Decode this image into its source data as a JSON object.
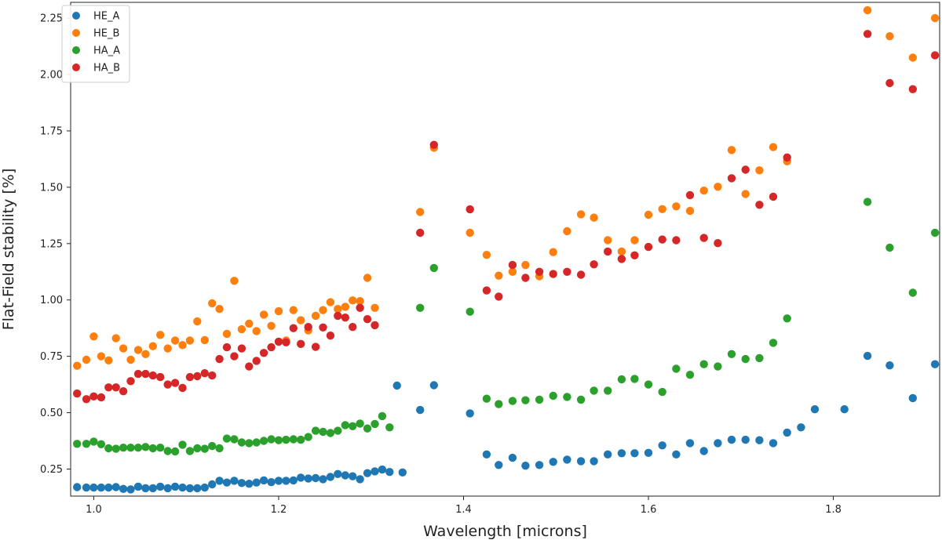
{
  "chart_data": {
    "type": "scatter",
    "xlabel": "Wavelength [microns]",
    "ylabel": "Flat-Field stability [%]",
    "xlim": [
      0.975,
      1.915
    ],
    "ylim": [
      0.13,
      2.32
    ],
    "x_ticks": [
      1.0,
      1.2,
      1.4,
      1.6,
      1.8
    ],
    "x_tick_labels": [
      "1.0",
      "1.2",
      "1.4",
      "1.6",
      "1.8"
    ],
    "y_ticks": [
      0.25,
      0.5,
      0.75,
      1.0,
      1.25,
      1.5,
      1.75,
      2.0,
      2.25
    ],
    "y_tick_labels": [
      "0.25",
      "0.50",
      "0.75",
      "1.00",
      "1.25",
      "1.50",
      "1.75",
      "2.00",
      "2.25"
    ],
    "grid": false,
    "legend_position": "top-left",
    "series": [
      {
        "name": "HE_A",
        "color": "#1f77b4",
        "points": [
          [
            0.982,
            0.17
          ],
          [
            0.992,
            0.168
          ],
          [
            1.0,
            0.168
          ],
          [
            1.008,
            0.168
          ],
          [
            1.016,
            0.168
          ],
          [
            1.024,
            0.17
          ],
          [
            1.032,
            0.162
          ],
          [
            1.04,
            0.16
          ],
          [
            1.048,
            0.172
          ],
          [
            1.056,
            0.165
          ],
          [
            1.064,
            0.165
          ],
          [
            1.072,
            0.172
          ],
          [
            1.08,
            0.165
          ],
          [
            1.088,
            0.172
          ],
          [
            1.096,
            0.168
          ],
          [
            1.104,
            0.165
          ],
          [
            1.112,
            0.165
          ],
          [
            1.12,
            0.168
          ],
          [
            1.128,
            0.182
          ],
          [
            1.136,
            0.198
          ],
          [
            1.144,
            0.19
          ],
          [
            1.152,
            0.198
          ],
          [
            1.16,
            0.188
          ],
          [
            1.168,
            0.185
          ],
          [
            1.176,
            0.19
          ],
          [
            1.184,
            0.2
          ],
          [
            1.192,
            0.192
          ],
          [
            1.2,
            0.198
          ],
          [
            1.208,
            0.198
          ],
          [
            1.216,
            0.2
          ],
          [
            1.224,
            0.212
          ],
          [
            1.232,
            0.208
          ],
          [
            1.24,
            0.21
          ],
          [
            1.248,
            0.205
          ],
          [
            1.256,
            0.215
          ],
          [
            1.264,
            0.228
          ],
          [
            1.272,
            0.222
          ],
          [
            1.28,
            0.218
          ],
          [
            1.288,
            0.205
          ],
          [
            1.296,
            0.232
          ],
          [
            1.304,
            0.24
          ],
          [
            1.312,
            0.248
          ],
          [
            1.32,
            0.237
          ],
          [
            1.328,
            0.62
          ],
          [
            1.334,
            0.235
          ],
          [
            1.353,
            0.512
          ],
          [
            1.368,
            0.622
          ],
          [
            1.407,
            0.497
          ],
          [
            1.425,
            0.315
          ],
          [
            1.438,
            0.268
          ],
          [
            1.453,
            0.3
          ],
          [
            1.467,
            0.265
          ],
          [
            1.482,
            0.268
          ],
          [
            1.497,
            0.282
          ],
          [
            1.512,
            0.292
          ],
          [
            1.527,
            0.285
          ],
          [
            1.541,
            0.285
          ],
          [
            1.556,
            0.315
          ],
          [
            1.571,
            0.32
          ],
          [
            1.585,
            0.32
          ],
          [
            1.6,
            0.322
          ],
          [
            1.615,
            0.355
          ],
          [
            1.63,
            0.315
          ],
          [
            1.645,
            0.365
          ],
          [
            1.66,
            0.33
          ],
          [
            1.675,
            0.365
          ],
          [
            1.69,
            0.38
          ],
          [
            1.705,
            0.38
          ],
          [
            1.72,
            0.378
          ],
          [
            1.735,
            0.365
          ],
          [
            1.75,
            0.412
          ],
          [
            1.765,
            0.435
          ],
          [
            1.78,
            0.515
          ],
          [
            1.812,
            0.515
          ],
          [
            1.837,
            0.752
          ],
          [
            1.861,
            0.71
          ],
          [
            1.886,
            0.565
          ],
          [
            1.91,
            0.715
          ]
        ]
      },
      {
        "name": "HE_B",
        "color": "#ff7f0e",
        "points": [
          [
            0.982,
            0.708
          ],
          [
            0.992,
            0.735
          ],
          [
            1.0,
            0.838
          ],
          [
            1.008,
            0.75
          ],
          [
            1.016,
            0.732
          ],
          [
            1.024,
            0.83
          ],
          [
            1.032,
            0.785
          ],
          [
            1.04,
            0.735
          ],
          [
            1.048,
            0.778
          ],
          [
            1.056,
            0.76
          ],
          [
            1.064,
            0.795
          ],
          [
            1.072,
            0.845
          ],
          [
            1.08,
            0.785
          ],
          [
            1.088,
            0.82
          ],
          [
            1.096,
            0.8
          ],
          [
            1.104,
            0.82
          ],
          [
            1.112,
            0.905
          ],
          [
            1.12,
            0.822
          ],
          [
            1.128,
            0.985
          ],
          [
            1.136,
            0.96
          ],
          [
            1.144,
            0.85
          ],
          [
            1.152,
            1.085
          ],
          [
            1.16,
            0.87
          ],
          [
            1.168,
            0.895
          ],
          [
            1.176,
            0.862
          ],
          [
            1.184,
            0.935
          ],
          [
            1.192,
            0.885
          ],
          [
            1.2,
            0.95
          ],
          [
            1.208,
            0.82
          ],
          [
            1.216,
            0.955
          ],
          [
            1.224,
            0.91
          ],
          [
            1.232,
            0.865
          ],
          [
            1.24,
            0.93
          ],
          [
            1.248,
            0.955
          ],
          [
            1.256,
            0.99
          ],
          [
            1.264,
            0.96
          ],
          [
            1.272,
            0.97
          ],
          [
            1.28,
            0.998
          ],
          [
            1.288,
            0.995
          ],
          [
            1.296,
            1.098
          ],
          [
            1.304,
            0.965
          ],
          [
            1.353,
            1.39
          ],
          [
            1.368,
            1.675
          ],
          [
            1.407,
            1.298
          ],
          [
            1.425,
            1.2
          ],
          [
            1.438,
            1.108
          ],
          [
            1.453,
            1.125
          ],
          [
            1.467,
            1.155
          ],
          [
            1.482,
            1.105
          ],
          [
            1.497,
            1.212
          ],
          [
            1.512,
            1.305
          ],
          [
            1.527,
            1.38
          ],
          [
            1.541,
            1.365
          ],
          [
            1.556,
            1.265
          ],
          [
            1.571,
            1.215
          ],
          [
            1.585,
            1.265
          ],
          [
            1.6,
            1.378
          ],
          [
            1.615,
            1.403
          ],
          [
            1.63,
            1.415
          ],
          [
            1.645,
            1.395
          ],
          [
            1.66,
            1.485
          ],
          [
            1.675,
            1.502
          ],
          [
            1.69,
            1.665
          ],
          [
            1.705,
            1.47
          ],
          [
            1.72,
            1.575
          ],
          [
            1.735,
            1.678
          ],
          [
            1.75,
            1.615
          ],
          [
            1.837,
            2.285
          ],
          [
            1.861,
            2.17
          ],
          [
            1.886,
            2.075
          ],
          [
            1.91,
            2.25
          ]
        ]
      },
      {
        "name": "HA_A",
        "color": "#2ca02c",
        "points": [
          [
            0.982,
            0.362
          ],
          [
            0.992,
            0.362
          ],
          [
            1.0,
            0.372
          ],
          [
            1.008,
            0.36
          ],
          [
            1.016,
            0.342
          ],
          [
            1.024,
            0.34
          ],
          [
            1.032,
            0.345
          ],
          [
            1.04,
            0.345
          ],
          [
            1.048,
            0.345
          ],
          [
            1.056,
            0.348
          ],
          [
            1.064,
            0.342
          ],
          [
            1.072,
            0.345
          ],
          [
            1.08,
            0.33
          ],
          [
            1.088,
            0.328
          ],
          [
            1.096,
            0.358
          ],
          [
            1.104,
            0.33
          ],
          [
            1.112,
            0.342
          ],
          [
            1.12,
            0.34
          ],
          [
            1.128,
            0.352
          ],
          [
            1.136,
            0.342
          ],
          [
            1.144,
            0.385
          ],
          [
            1.152,
            0.382
          ],
          [
            1.16,
            0.368
          ],
          [
            1.168,
            0.365
          ],
          [
            1.176,
            0.368
          ],
          [
            1.184,
            0.375
          ],
          [
            1.192,
            0.382
          ],
          [
            1.2,
            0.378
          ],
          [
            1.208,
            0.38
          ],
          [
            1.216,
            0.382
          ],
          [
            1.224,
            0.38
          ],
          [
            1.232,
            0.392
          ],
          [
            1.24,
            0.42
          ],
          [
            1.248,
            0.415
          ],
          [
            1.256,
            0.41
          ],
          [
            1.264,
            0.42
          ],
          [
            1.272,
            0.445
          ],
          [
            1.28,
            0.44
          ],
          [
            1.288,
            0.452
          ],
          [
            1.296,
            0.43
          ],
          [
            1.304,
            0.45
          ],
          [
            1.312,
            0.485
          ],
          [
            1.32,
            0.435
          ],
          [
            1.353,
            0.965
          ],
          [
            1.368,
            1.142
          ],
          [
            1.407,
            0.948
          ],
          [
            1.425,
            0.562
          ],
          [
            1.438,
            0.538
          ],
          [
            1.453,
            0.552
          ],
          [
            1.467,
            0.555
          ],
          [
            1.482,
            0.558
          ],
          [
            1.497,
            0.575
          ],
          [
            1.512,
            0.57
          ],
          [
            1.527,
            0.558
          ],
          [
            1.541,
            0.598
          ],
          [
            1.556,
            0.598
          ],
          [
            1.571,
            0.648
          ],
          [
            1.585,
            0.65
          ],
          [
            1.6,
            0.625
          ],
          [
            1.615,
            0.592
          ],
          [
            1.63,
            0.695
          ],
          [
            1.645,
            0.668
          ],
          [
            1.66,
            0.715
          ],
          [
            1.675,
            0.705
          ],
          [
            1.69,
            0.76
          ],
          [
            1.705,
            0.738
          ],
          [
            1.72,
            0.742
          ],
          [
            1.735,
            0.81
          ],
          [
            1.75,
            0.918
          ],
          [
            1.837,
            1.435
          ],
          [
            1.861,
            1.232
          ],
          [
            1.886,
            1.032
          ],
          [
            1.91,
            1.298
          ]
        ]
      },
      {
        "name": "HA_B",
        "color": "#d62728",
        "points": [
          [
            0.982,
            0.585
          ],
          [
            0.992,
            0.56
          ],
          [
            1.0,
            0.572
          ],
          [
            1.008,
            0.568
          ],
          [
            1.016,
            0.612
          ],
          [
            1.024,
            0.612
          ],
          [
            1.032,
            0.595
          ],
          [
            1.04,
            0.64
          ],
          [
            1.048,
            0.672
          ],
          [
            1.056,
            0.672
          ],
          [
            1.064,
            0.665
          ],
          [
            1.072,
            0.658
          ],
          [
            1.08,
            0.625
          ],
          [
            1.088,
            0.632
          ],
          [
            1.096,
            0.61
          ],
          [
            1.104,
            0.658
          ],
          [
            1.112,
            0.662
          ],
          [
            1.12,
            0.675
          ],
          [
            1.128,
            0.665
          ],
          [
            1.136,
            0.738
          ],
          [
            1.144,
            0.79
          ],
          [
            1.152,
            0.75
          ],
          [
            1.16,
            0.785
          ],
          [
            1.168,
            0.705
          ],
          [
            1.176,
            0.73
          ],
          [
            1.184,
            0.765
          ],
          [
            1.192,
            0.79
          ],
          [
            1.2,
            0.815
          ],
          [
            1.208,
            0.812
          ],
          [
            1.216,
            0.875
          ],
          [
            1.224,
            0.805
          ],
          [
            1.232,
            0.88
          ],
          [
            1.24,
            0.792
          ],
          [
            1.248,
            0.878
          ],
          [
            1.256,
            0.842
          ],
          [
            1.264,
            0.93
          ],
          [
            1.272,
            0.922
          ],
          [
            1.28,
            0.88
          ],
          [
            1.288,
            0.965
          ],
          [
            1.296,
            0.915
          ],
          [
            1.304,
            0.888
          ],
          [
            1.353,
            1.298
          ],
          [
            1.368,
            1.688
          ],
          [
            1.407,
            1.402
          ],
          [
            1.425,
            1.042
          ],
          [
            1.438,
            1.015
          ],
          [
            1.453,
            1.155
          ],
          [
            1.467,
            1.098
          ],
          [
            1.482,
            1.125
          ],
          [
            1.497,
            1.115
          ],
          [
            1.512,
            1.125
          ],
          [
            1.527,
            1.112
          ],
          [
            1.541,
            1.158
          ],
          [
            1.556,
            1.215
          ],
          [
            1.571,
            1.182
          ],
          [
            1.585,
            1.198
          ],
          [
            1.6,
            1.235
          ],
          [
            1.615,
            1.268
          ],
          [
            1.63,
            1.265
          ],
          [
            1.645,
            1.465
          ],
          [
            1.66,
            1.275
          ],
          [
            1.675,
            1.252
          ],
          [
            1.69,
            1.54
          ],
          [
            1.705,
            1.578
          ],
          [
            1.72,
            1.422
          ],
          [
            1.735,
            1.458
          ],
          [
            1.75,
            1.632
          ],
          [
            1.837,
            2.18
          ],
          [
            1.861,
            1.962
          ],
          [
            1.886,
            1.935
          ],
          [
            1.91,
            2.085
          ]
        ]
      }
    ]
  }
}
